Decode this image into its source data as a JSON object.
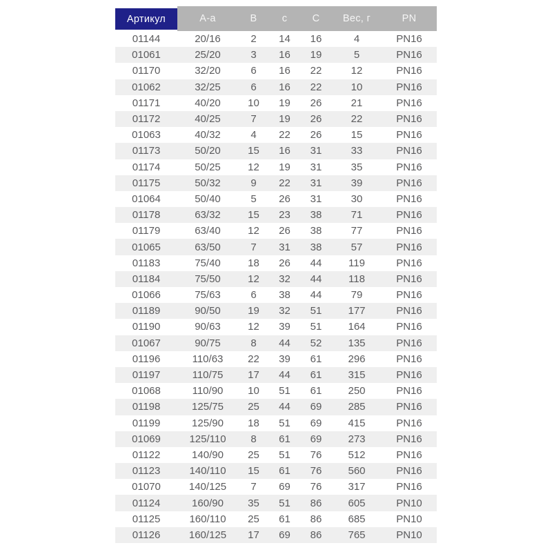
{
  "table": {
    "headers": [
      "Артикул",
      "А-а",
      "В",
      "с",
      "С",
      "Вес, г",
      "PN"
    ],
    "rows": [
      [
        "01144",
        "20/16",
        "2",
        "14",
        "16",
        "4",
        "PN16"
      ],
      [
        "01061",
        "25/20",
        "3",
        "16",
        "19",
        "5",
        "PN16"
      ],
      [
        "01170",
        "32/20",
        "6",
        "16",
        "22",
        "12",
        "PN16"
      ],
      [
        "01062",
        "32/25",
        "6",
        "16",
        "22",
        "10",
        "PN16"
      ],
      [
        "01171",
        "40/20",
        "10",
        "19",
        "26",
        "21",
        "PN16"
      ],
      [
        "01172",
        "40/25",
        "7",
        "19",
        "26",
        "22",
        "PN16"
      ],
      [
        "01063",
        "40/32",
        "4",
        "22",
        "26",
        "15",
        "PN16"
      ],
      [
        "01173",
        "50/20",
        "15",
        "16",
        "31",
        "33",
        "PN16"
      ],
      [
        "01174",
        "50/25",
        "12",
        "19",
        "31",
        "35",
        "PN16"
      ],
      [
        "01175",
        "50/32",
        "9",
        "22",
        "31",
        "39",
        "PN16"
      ],
      [
        "01064",
        "50/40",
        "5",
        "26",
        "31",
        "30",
        "PN16"
      ],
      [
        "01178",
        "63/32",
        "15",
        "23",
        "38",
        "71",
        "PN16"
      ],
      [
        "01179",
        "63/40",
        "12",
        "26",
        "38",
        "77",
        "PN16"
      ],
      [
        "01065",
        "63/50",
        "7",
        "31",
        "38",
        "57",
        "PN16"
      ],
      [
        "01183",
        "75/40",
        "18",
        "26",
        "44",
        "119",
        "PN16"
      ],
      [
        "01184",
        "75/50",
        "12",
        "32",
        "44",
        "118",
        "PN16"
      ],
      [
        "01066",
        "75/63",
        "6",
        "38",
        "44",
        "79",
        "PN16"
      ],
      [
        "01189",
        "90/50",
        "19",
        "32",
        "51",
        "177",
        "PN16"
      ],
      [
        "01190",
        "90/63",
        "12",
        "39",
        "51",
        "164",
        "PN16"
      ],
      [
        "01067",
        "90/75",
        "8",
        "44",
        "52",
        "135",
        "PN16"
      ],
      [
        "01196",
        "110/63",
        "22",
        "39",
        "61",
        "296",
        "PN16"
      ],
      [
        "01197",
        "110/75",
        "17",
        "44",
        "61",
        "315",
        "PN16"
      ],
      [
        "01068",
        "110/90",
        "10",
        "51",
        "61",
        "250",
        "PN16"
      ],
      [
        "01198",
        "125/75",
        "25",
        "44",
        "69",
        "285",
        "PN16"
      ],
      [
        "01199",
        "125/90",
        "18",
        "51",
        "69",
        "415",
        "PN16"
      ],
      [
        "01069",
        "125/110",
        "8",
        "61",
        "69",
        "273",
        "PN16"
      ],
      [
        "01122",
        "140/90",
        "25",
        "51",
        "76",
        "512",
        "PN16"
      ],
      [
        "01123",
        "140/110",
        "15",
        "61",
        "76",
        "560",
        "PN16"
      ],
      [
        "01070",
        "140/125",
        "7",
        "69",
        "76",
        "317",
        "PN16"
      ],
      [
        "01124",
        "160/90",
        "35",
        "51",
        "86",
        "605",
        "PN10"
      ],
      [
        "01125",
        "160/110",
        "25",
        "61",
        "86",
        "685",
        "PN10"
      ],
      [
        "01126",
        "160/125",
        "17",
        "69",
        "86",
        "765",
        "PN10"
      ]
    ]
  },
  "colors": {
    "accent_blue": "#1f2189",
    "header_gray": "#b4b4b4",
    "header_text": "#f5f5f5",
    "stripe": "#efefef",
    "row_text": "#5a5a5c"
  }
}
